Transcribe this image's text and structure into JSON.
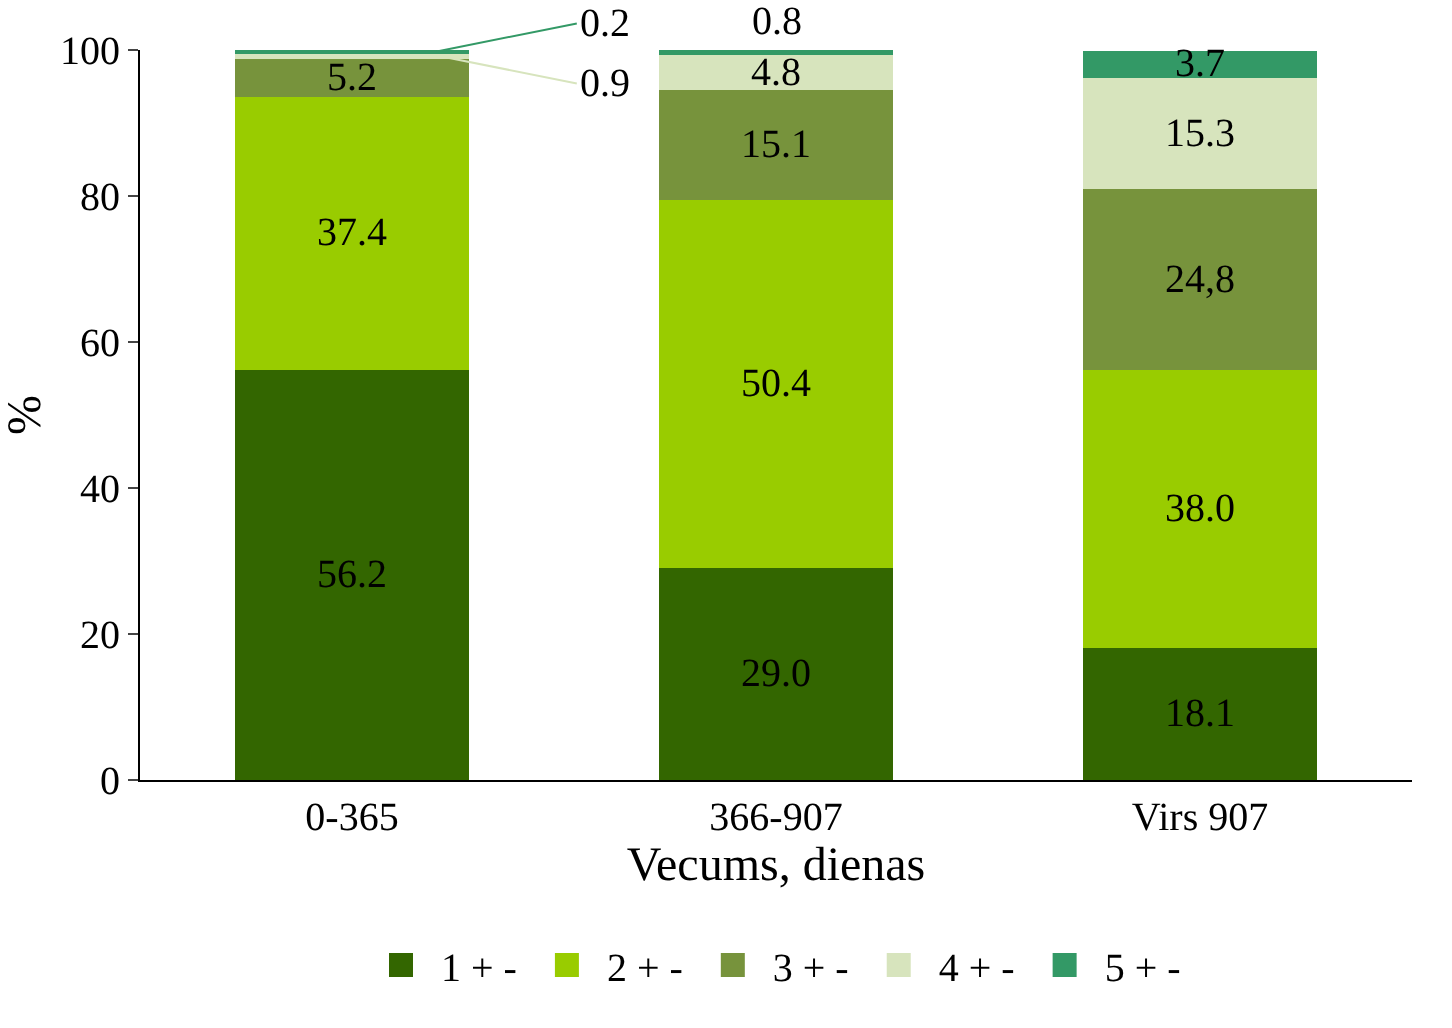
{
  "chart_data": {
    "type": "bar",
    "stacked": true,
    "xlabel": "Vecums, dienas",
    "ylabel": "%",
    "categories": [
      "0-365",
      "366-907",
      "Virs 907"
    ],
    "series": [
      {
        "name": "1 + -",
        "color": "#336600",
        "values": [
          56.2,
          29.0,
          18.1
        ],
        "value_labels": [
          "56.2",
          "29.0",
          "18.1"
        ]
      },
      {
        "name": "2 + -",
        "color": "#99cc00",
        "values": [
          37.4,
          50.4,
          38.0
        ],
        "value_labels": [
          "37.4",
          "50.4",
          "38.0"
        ]
      },
      {
        "name": "3 + -",
        "color": "#77933c",
        "values": [
          5.2,
          15.1,
          24.8
        ],
        "value_labels": [
          "5.2",
          "15.1",
          "24,8"
        ]
      },
      {
        "name": "4 + -",
        "color": "#d7e4bd",
        "values": [
          0.9,
          4.8,
          15.3
        ],
        "value_labels": [
          "0.9",
          "4.8",
          "15.3"
        ]
      },
      {
        "name": "5 + -",
        "color": "#339966",
        "values": [
          0.2,
          0.8,
          3.7
        ],
        "value_labels": [
          "0.2",
          "0.8",
          "3.7"
        ]
      }
    ],
    "ylim": [
      0,
      100
    ],
    "yticks": [
      0,
      20,
      40,
      60,
      80,
      100
    ],
    "legend": "bottom"
  }
}
